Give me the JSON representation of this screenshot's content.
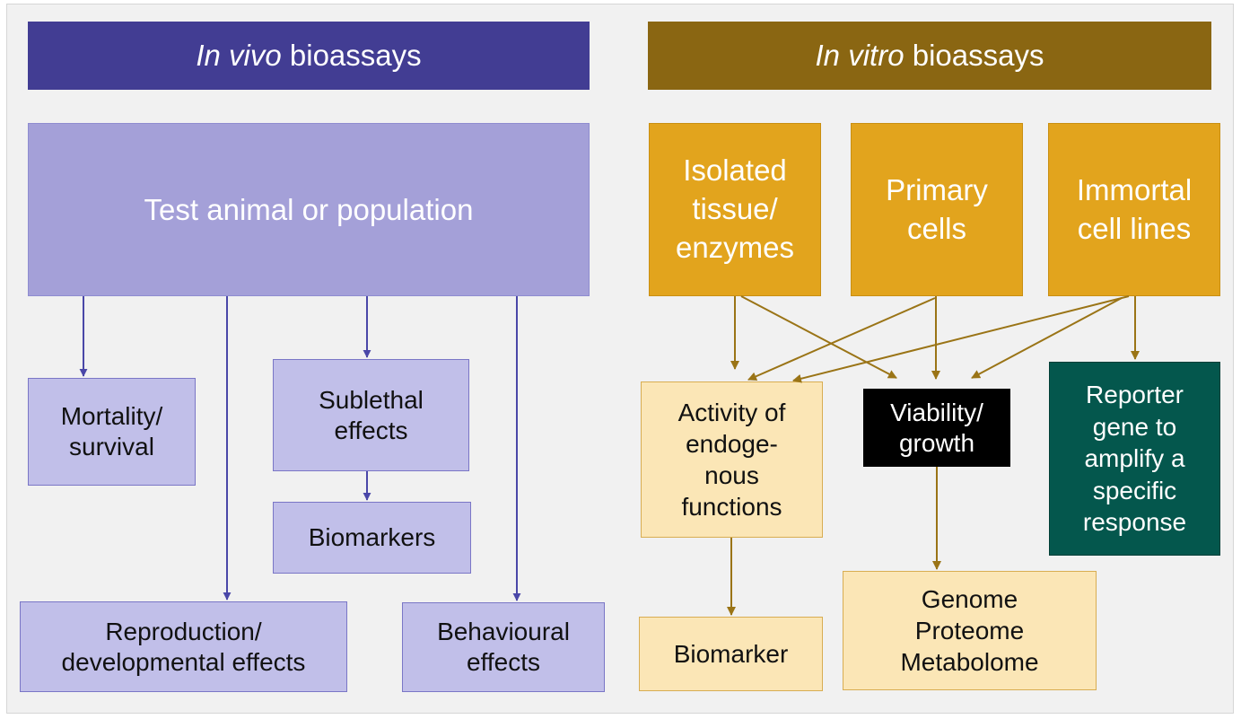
{
  "in_vivo": {
    "header": {
      "italic": "In vivo",
      "rest": " bioassays"
    },
    "test_animal": "Test animal or population",
    "mortality": "Mortality/\nsurvival",
    "sublethal": "Sublethal\neffects",
    "biomarkers": "Biomarkers",
    "reproduction": "Reproduction/\ndevelopmental effects",
    "behavioural": "Behavioural\neffects"
  },
  "in_vitro": {
    "header": {
      "italic": "In vitro",
      "rest": " bioassays"
    },
    "isolated": "Isolated\ntissue/\nenzymes",
    "primary": "Primary\ncells",
    "immortal": "Immortal\ncell lines",
    "activity": "Activity of\nendoge-\nnous\nfunctions",
    "viability": "Viability/\ngrowth",
    "reporter": "Reporter\ngene to\namplify a\nspecific\nresponse",
    "biomarker": "Biomarker",
    "omics": "Genome\nProteome\nMetabolome"
  },
  "colors": {
    "vivo_arrow": "#4a47a8",
    "vitro_arrow": "#9a7416"
  }
}
